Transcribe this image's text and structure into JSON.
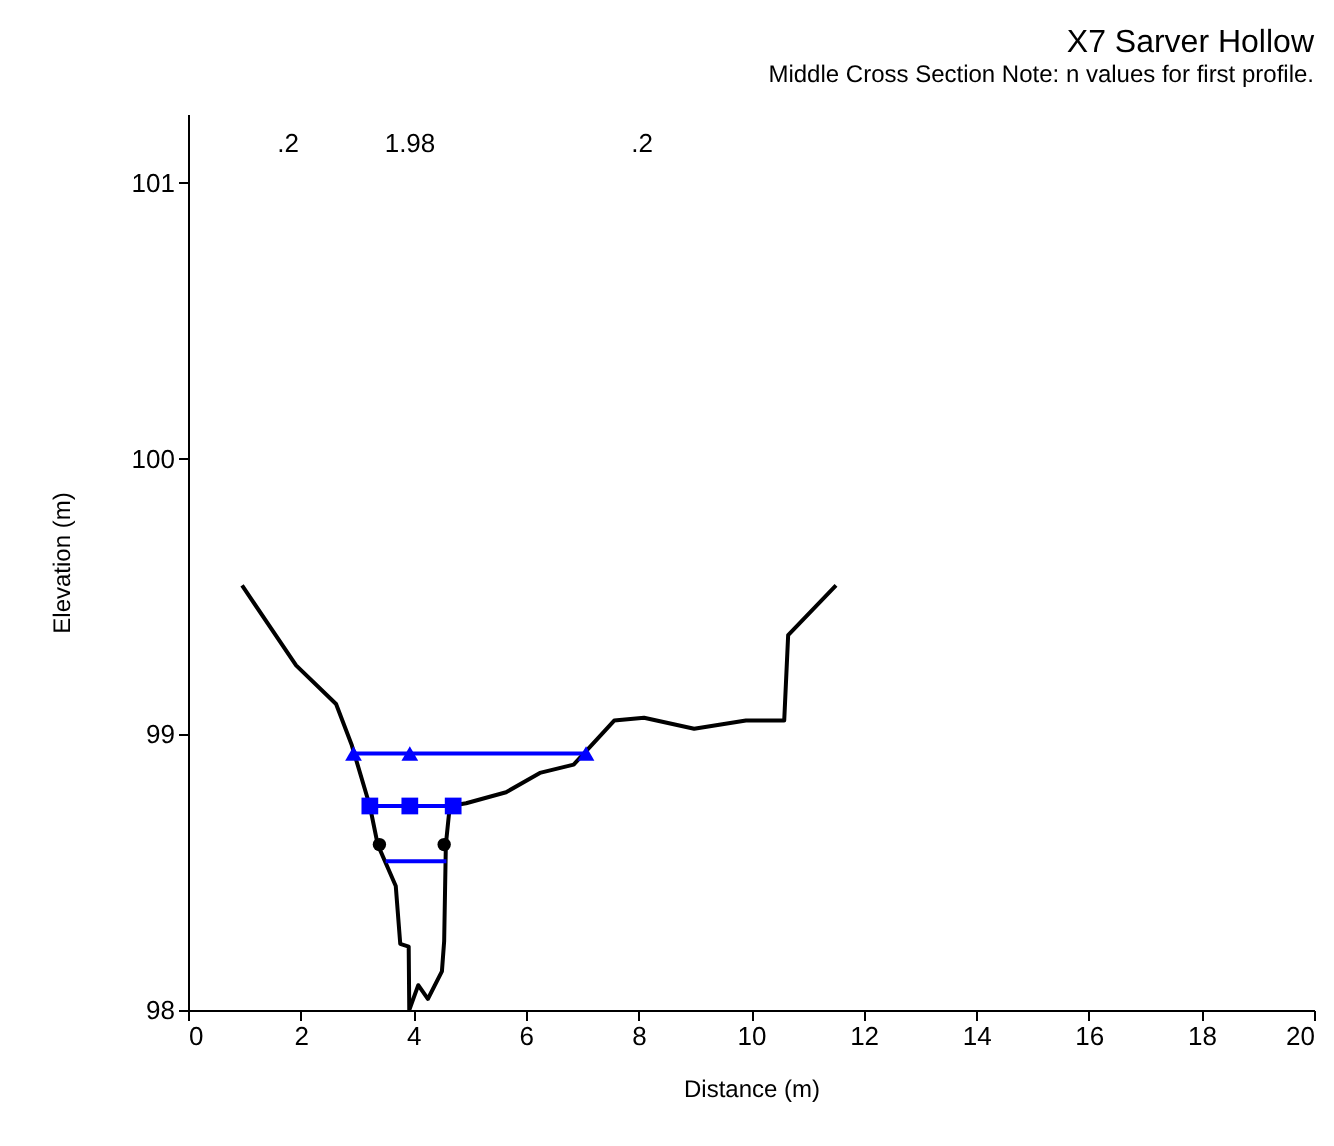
{
  "chart_data": {
    "type": "line",
    "title": "X7 Sarver Hollow",
    "subtitle": "Middle Cross Section Note: n values for first profile.",
    "xlabel": "Distance (m)",
    "ylabel": "Elevation (m)",
    "xlim": [
      0,
      20
    ],
    "xticks": [
      0,
      2,
      4,
      6,
      8,
      10,
      12,
      14,
      16,
      18,
      20
    ],
    "ylim": [
      98,
      101.25
    ],
    "yticks": [
      98,
      99,
      100,
      101
    ],
    "grid": false,
    "series": [
      {
        "color": "#000000",
        "marker": "none",
        "x": [
          0.96,
          1.92,
          2.63,
          2.91,
          3.23,
          3.37,
          3.69,
          3.77,
          3.92,
          3.93,
          4.09,
          4.26,
          4.51,
          4.55,
          4.58,
          4.65,
          4.94,
          5.65,
          6.25,
          6.85,
          7.57,
          8.1,
          8.99,
          9.91,
          10.59,
          10.66,
          11.51
        ],
        "values": [
          99.54,
          99.25,
          99.11,
          98.96,
          98.74,
          98.6,
          98.45,
          98.24,
          98.23,
          98.0,
          98.09,
          98.04,
          98.14,
          98.25,
          98.6,
          98.74,
          98.75,
          98.79,
          98.86,
          98.89,
          99.05,
          99.06,
          99.02,
          99.05,
          99.05,
          99.36,
          99.54
        ]
      },
      {
        "type": "line",
        "color": "#0000ff",
        "marker": "triangle",
        "x": [
          2.94,
          3.94,
          7.07
        ],
        "values": [
          98.93,
          98.93,
          98.93
        ]
      },
      {
        "type": "line",
        "color": "#0000ff",
        "marker": "square",
        "x": [
          3.23,
          3.94,
          4.71
        ],
        "values": [
          98.74,
          98.74,
          98.74
        ]
      },
      {
        "type": "line",
        "color": "#0000ff",
        "marker": "none",
        "x": [
          3.51,
          4.59
        ],
        "values": [
          98.54,
          98.54
        ]
      },
      {
        "type": "scatter",
        "color": "#000000",
        "marker": "circle",
        "x": [
          3.4,
          4.55
        ],
        "values": [
          98.6,
          98.6
        ]
      }
    ],
    "annotations": [
      ".2",
      "1.98",
      ".2"
    ]
  }
}
